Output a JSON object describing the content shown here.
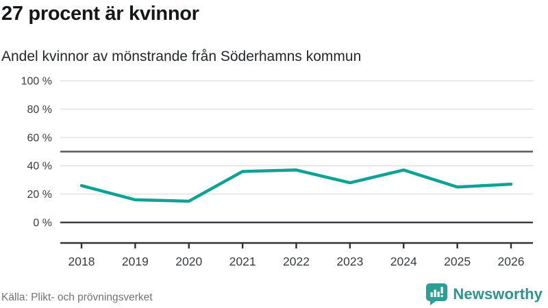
{
  "header": {
    "title": "27 procent är kvinnor",
    "subtitle": "Andel kvinnor av mönstrande från Söderhamns kommun"
  },
  "footer": {
    "source": "Källa: Plikt- och prövningsverket",
    "brand": "Newsworthy"
  },
  "colors": {
    "line": "#0da295",
    "grid_light": "#e3e3e3",
    "ref_line": "#57585c",
    "zero_line": "#3d3e42",
    "axis": "#303030",
    "tick_text": "#3a3d40",
    "muted_text": "#737373",
    "brand_teal": "#2e938c",
    "logo_teal": "#2e9e94"
  },
  "chart_data": {
    "type": "line",
    "x": [
      "2018",
      "2019",
      "2020",
      "2021",
      "2022",
      "2023",
      "2024",
      "2025",
      "2026"
    ],
    "series": [
      {
        "name": "Andel kvinnor av mönstrande",
        "values": [
          26,
          16,
          15,
          36,
          37,
          28,
          37,
          25,
          27
        ]
      }
    ],
    "title": "27 procent är kvinnor",
    "subtitle": "Andel kvinnor av mönstrande från Söderhamns kommun",
    "xlabel": "",
    "ylabel": "",
    "yticks": [
      0,
      20,
      40,
      60,
      80,
      100
    ],
    "ytick_suffix": " %",
    "ylim": [
      0,
      100
    ],
    "ref_line": 50,
    "grid": true,
    "legend": false
  }
}
